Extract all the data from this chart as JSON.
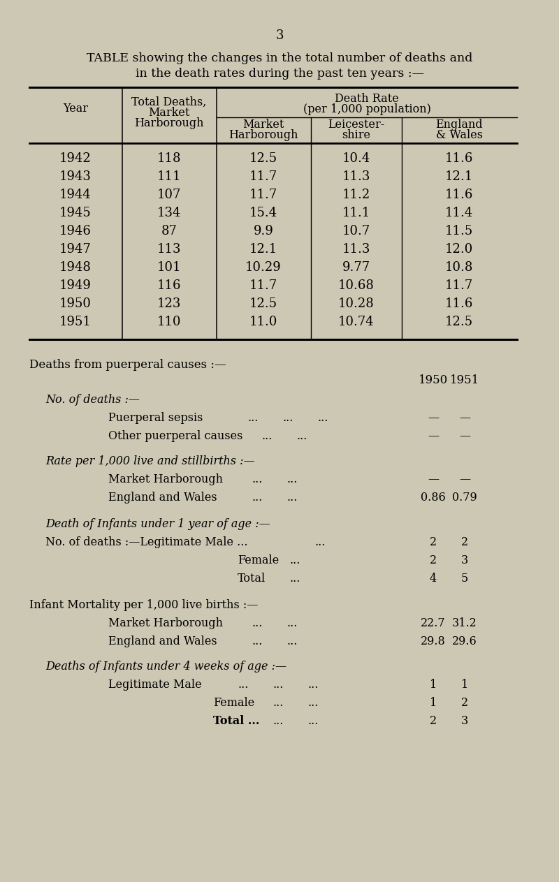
{
  "page_number": "3",
  "title_line1": "TABLE showing the changes in the total number of deaths and",
  "title_line2": "in the death rates during the past ten years :—",
  "bg_color": "#cdc8b4",
  "table_years": [
    1942,
    1943,
    1944,
    1945,
    1946,
    1947,
    1948,
    1949,
    1950,
    1951
  ],
  "total_deaths": [
    118,
    111,
    107,
    134,
    87,
    113,
    101,
    116,
    123,
    110
  ],
  "mh_rate": [
    "12.5",
    "11.7",
    "11.7",
    "15.4",
    "9.9",
    "12.1",
    "10.29",
    "11.7",
    "12.5",
    "11.0"
  ],
  "leics_rate": [
    "10.4",
    "11.3",
    "11.2",
    "11.1",
    "10.7",
    "11.3",
    "9.77",
    "10.68",
    "10.28",
    "10.74"
  ],
  "eng_wales_rate": [
    "11.6",
    "12.1",
    "11.6",
    "11.4",
    "11.5",
    "12.0",
    "10.8",
    "11.7",
    "11.6",
    "12.5"
  ],
  "col_header_year": "Year",
  "col_header_total": [
    "Total Deaths,",
    "Market",
    "Harborough"
  ],
  "col_header_dr": "Death Rate",
  "col_header_dr2": "(per 1,000 population)",
  "col_header_mh": [
    "Market",
    "Harborough"
  ],
  "col_header_leics": [
    "Leicester-",
    "shire"
  ],
  "col_header_engwales": [
    "England",
    "& Wales"
  ],
  "section2_title": "Deaths from puerperal causes :—",
  "no_of_deaths_label": "No. of deaths :—",
  "puerperal_sepsis_label": "Puerperal sepsis",
  "other_puerperal_label": "Other puerperal causes",
  "rate_label": "Rate per 1,000 live and stillbirths :—",
  "mh_label2": "Market Harborough",
  "engwales_label2": "England and Wales",
  "infant_death_label": "Death of Infants under 1 year of age :—",
  "no_deaths_legit": "No. of deaths :—Legitimate Male ...",
  "female_label": "Female",
  "total_label": "Total",
  "infant_mort_label": "Infant Mortality per 1,000 live births :—",
  "mh_label3": "Market Harborough",
  "engwales_label3": "England and Wales",
  "infant4weeks_label": "Deaths of Infants under 4 weeks of age :—",
  "legit_male4_label": "Legitimate Male",
  "female4_label": "Female",
  "total4_label": "Total ..."
}
